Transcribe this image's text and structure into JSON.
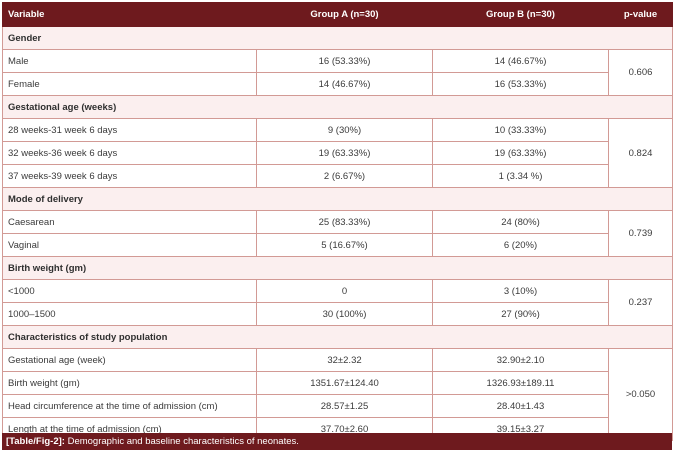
{
  "headers": [
    "Variable",
    "Group A (n=30)",
    "Group B (n=30)",
    "p-value"
  ],
  "sections": [
    {
      "title": "Gender",
      "p_value": "0.606",
      "rows": [
        {
          "label": "Male",
          "a": "16 (53.33%)",
          "b": "14 (46.67%)"
        },
        {
          "label": "Female",
          "a": "14 (46.67%)",
          "b": "16 (53.33%)"
        }
      ]
    },
    {
      "title": "Gestational age (weeks)",
      "p_value": "0.824",
      "rows": [
        {
          "label": "28 weeks-31 week 6 days",
          "a": "9 (30%)",
          "b": "10 (33.33%)"
        },
        {
          "label": "32 weeks-36 week 6 days",
          "a": "19 (63.33%)",
          "b": "19 (63.33%)"
        },
        {
          "label": "37 weeks-39 week 6 days",
          "a": "2 (6.67%)",
          "b": "1 (3.34 %)"
        }
      ]
    },
    {
      "title": "Mode of delivery",
      "p_value": "0.739",
      "rows": [
        {
          "label": "Caesarean",
          "a": "25 (83.33%)",
          "b": "24 (80%)"
        },
        {
          "label": "Vaginal",
          "a": "5 (16.67%)",
          "b": "6 (20%)"
        }
      ]
    },
    {
      "title": "Birth weight (gm)",
      "p_value": "0.237",
      "rows": [
        {
          "label": "<1000",
          "a": "0",
          "b": "3 (10%)"
        },
        {
          "label": "1000–1500",
          "a": "30 (100%)",
          "b": "27 (90%)"
        }
      ]
    },
    {
      "title": "Characteristics of study population",
      "p_value": ">0.050",
      "rows": [
        {
          "label": "Gestational age (week)",
          "a": "32±2.32",
          "b": "32.90±2.10"
        },
        {
          "label": "Birth weight (gm)",
          "a": "1351.67±124.40",
          "b": "1326.93±189.11"
        },
        {
          "label": "Head circumference at the time of admission (cm)",
          "a": "28.57±1.25",
          "b": "28.40±1.43"
        },
        {
          "label": "Length at the time of admission (cm)",
          "a": "37.70±2.60",
          "b": "39.15±3.27"
        }
      ]
    }
  ],
  "caption": {
    "tag": "[Table/Fig-2]:",
    "text": " Demographic and baseline characteristics of neonates."
  }
}
